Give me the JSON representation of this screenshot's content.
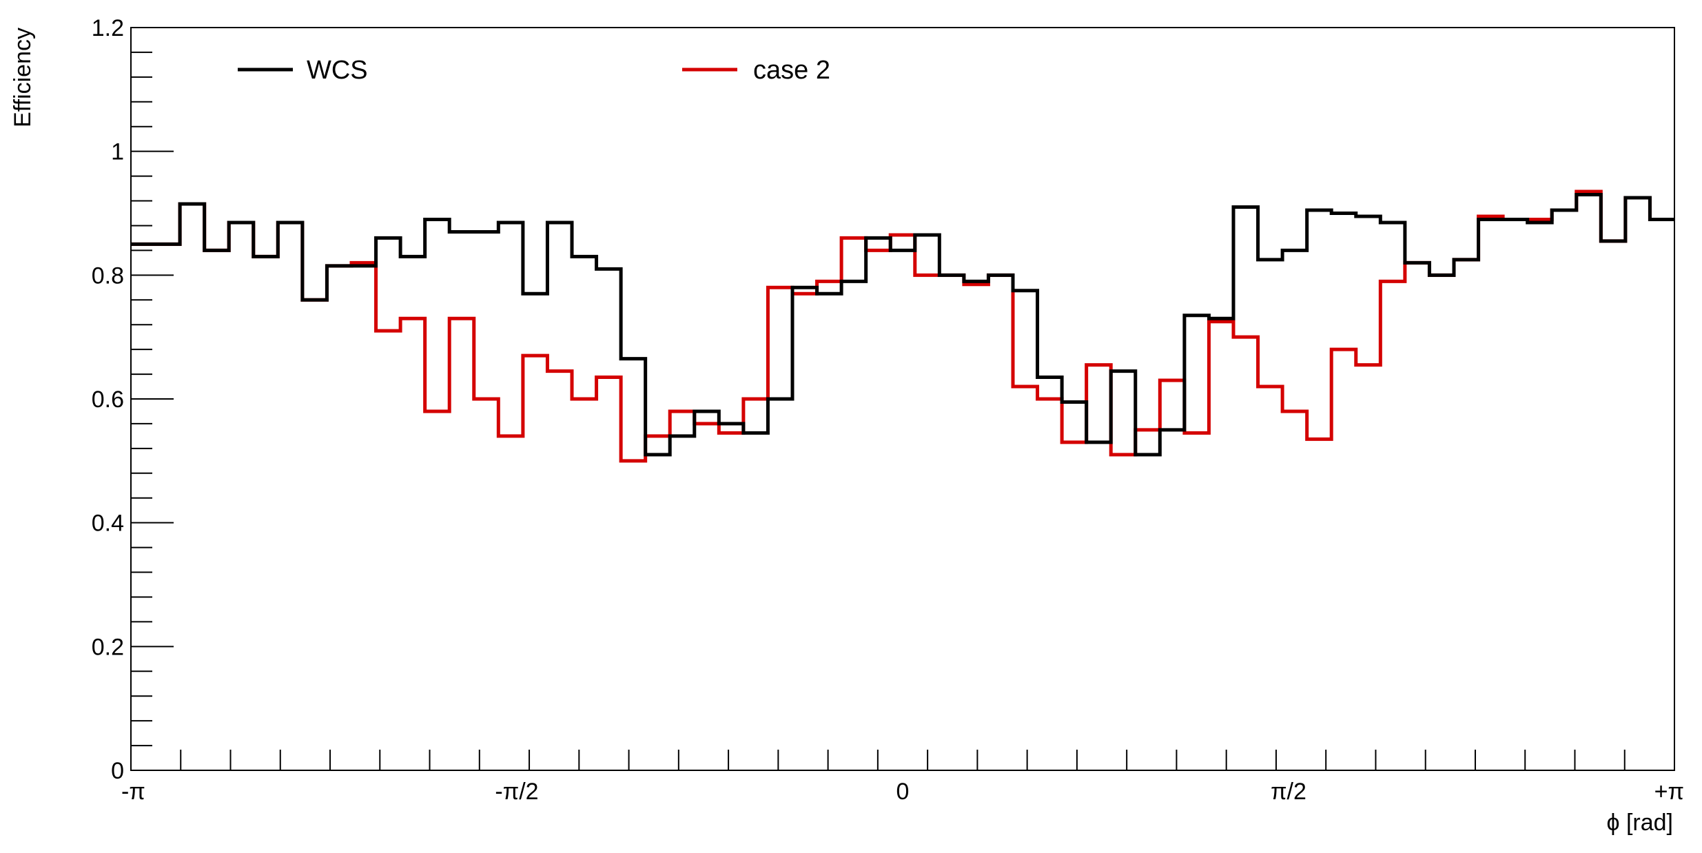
{
  "chart_data": {
    "type": "line",
    "style": "step-histogram",
    "title": "",
    "xlabel": "ϕ [rad]",
    "ylabel": "Efficiency",
    "xlim": [
      -3.14159,
      3.14159
    ],
    "ylim": [
      0,
      1.2
    ],
    "bins": 63,
    "x_ticks": [
      {
        "value": -3.14159,
        "label": "-π"
      },
      {
        "value": -1.5708,
        "label": "-π/2"
      },
      {
        "value": 0,
        "label": "0"
      },
      {
        "value": 1.5708,
        "label": "π/2"
      },
      {
        "value": 3.14159,
        "label": "+π"
      }
    ],
    "y_ticks": [
      {
        "value": 0,
        "label": "0"
      },
      {
        "value": 0.2,
        "label": "0.2"
      },
      {
        "value": 0.4,
        "label": "0.4"
      },
      {
        "value": 0.6,
        "label": "0.6"
      },
      {
        "value": 0.8,
        "label": "0.8"
      },
      {
        "value": 1.0,
        "label": "1"
      },
      {
        "value": 1.2,
        "label": "1.2"
      }
    ],
    "grid": false,
    "legend_position": "top",
    "series": [
      {
        "name": "case 2",
        "color": "#d40000",
        "values": [
          0.85,
          0.85,
          0.915,
          0.84,
          0.885,
          0.83,
          0.885,
          0.76,
          0.815,
          0.82,
          0.71,
          0.73,
          0.58,
          0.73,
          0.6,
          0.54,
          0.67,
          0.645,
          0.6,
          0.635,
          0.5,
          0.54,
          0.58,
          0.56,
          0.545,
          0.6,
          0.78,
          0.77,
          0.79,
          0.86,
          0.84,
          0.865,
          0.8,
          0.8,
          0.785,
          0.8,
          0.62,
          0.6,
          0.53,
          0.655,
          0.51,
          0.55,
          0.63,
          0.545,
          0.725,
          0.7,
          0.62,
          0.58,
          0.535,
          0.68,
          0.655,
          0.79,
          0.82,
          0.8,
          0.825,
          0.895,
          0.89,
          0.89,
          0.905,
          0.935,
          0.855,
          0.925,
          0.89
        ]
      },
      {
        "name": "WCS",
        "color": "#000000",
        "values": [
          0.85,
          0.85,
          0.915,
          0.84,
          0.885,
          0.83,
          0.885,
          0.76,
          0.815,
          0.815,
          0.86,
          0.83,
          0.89,
          0.87,
          0.87,
          0.885,
          0.77,
          0.885,
          0.83,
          0.81,
          0.665,
          0.51,
          0.54,
          0.58,
          0.56,
          0.545,
          0.6,
          0.78,
          0.77,
          0.79,
          0.86,
          0.84,
          0.865,
          0.8,
          0.79,
          0.8,
          0.775,
          0.635,
          0.595,
          0.53,
          0.645,
          0.51,
          0.55,
          0.735,
          0.73,
          0.91,
          0.825,
          0.84,
          0.905,
          0.9,
          0.895,
          0.885,
          0.82,
          0.8,
          0.825,
          0.89,
          0.89,
          0.885,
          0.905,
          0.93,
          0.855,
          0.925,
          0.89
        ]
      }
    ]
  }
}
